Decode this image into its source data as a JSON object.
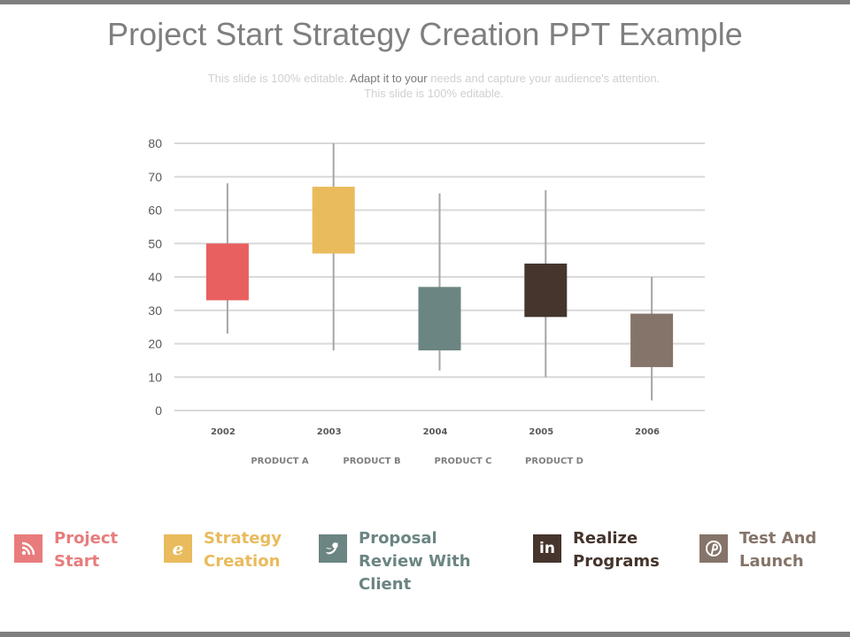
{
  "slide": {
    "title": "Project Start Strategy Creation PPT Example",
    "subtitle_light_1": "This slide is 100% editable. ",
    "subtitle_dark": "Adapt it to your",
    "subtitle_light_2": " needs and capture your audience's attention. This slide is 100% editable."
  },
  "chart_data": {
    "type": "candlestick",
    "categories": [
      "2002",
      "2003",
      "2004",
      "2005",
      "2006"
    ],
    "series_names": [
      "PRODUCT A",
      "PRODUCT B",
      "PRODUCT C",
      "PRODUCT D"
    ],
    "ylim": [
      0,
      80
    ],
    "yticks": [
      0,
      10,
      20,
      30,
      40,
      50,
      60,
      70,
      80
    ],
    "grid": true,
    "points": [
      {
        "x": "2002",
        "low": 23,
        "high": 68,
        "box_low": 33,
        "box_high": 50,
        "color": "#e86060"
      },
      {
        "x": "2003",
        "low": 18,
        "high": 80,
        "box_low": 47,
        "box_high": 67,
        "color": "#e9bb5d"
      },
      {
        "x": "2004",
        "low": 12,
        "high": 65,
        "box_low": 18,
        "box_high": 37,
        "color": "#6b8582"
      },
      {
        "x": "2005",
        "low": 10,
        "high": 66,
        "box_low": 28,
        "box_high": 44,
        "color": "#45352d"
      },
      {
        "x": "2006",
        "low": 3,
        "high": 40,
        "box_low": 13,
        "box_high": 29,
        "color": "#857469"
      }
    ]
  },
  "legend": [
    {
      "icon": "rss-icon",
      "glyph": "rss",
      "line1": "Project",
      "line2": "Start",
      "line3": "",
      "color": "#e87c7c"
    },
    {
      "icon": "blogger-icon",
      "glyph": "e",
      "line1": "Strategy",
      "line2": "Creation",
      "line3": "",
      "color": "#e9bb5d"
    },
    {
      "icon": "twitter-icon",
      "glyph": "bird",
      "line1": "Proposal",
      "line2": "Review With",
      "line3": "Client",
      "color": "#6b8582"
    },
    {
      "icon": "linkedin-icon",
      "glyph": "in",
      "line1": "Realize",
      "line2": "Programs",
      "line3": "",
      "color": "#45352d"
    },
    {
      "icon": "pinterest-icon",
      "glyph": "P",
      "line1": "Test And",
      "line2": "Launch",
      "line3": "",
      "color": "#857469"
    }
  ]
}
